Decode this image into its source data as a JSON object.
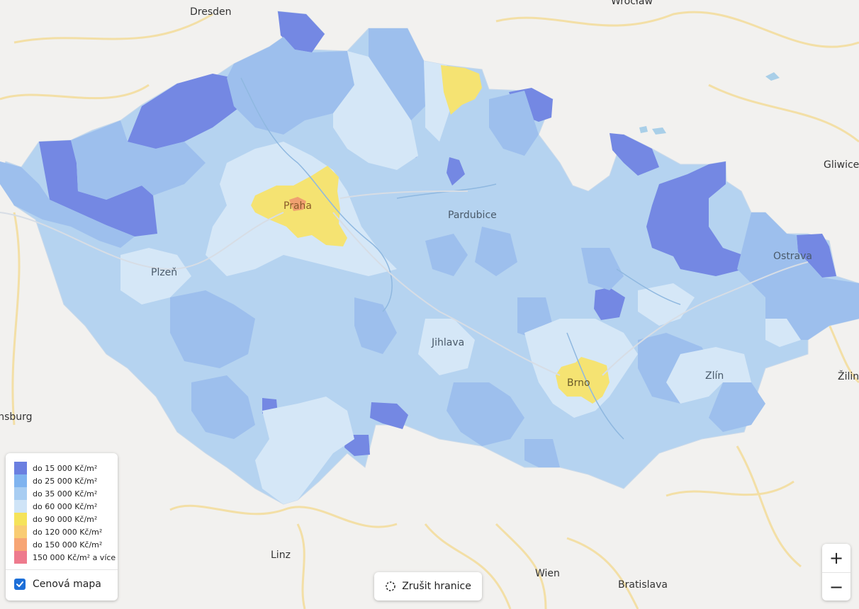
{
  "map": {
    "cities_outside": [
      {
        "name": "Dresden"
      },
      {
        "name": "Wrocław"
      },
      {
        "name": "Gliwice"
      },
      {
        "name": "Žilina"
      },
      {
        "name": "Regensburg"
      },
      {
        "name": "Linz"
      },
      {
        "name": "Wien"
      },
      {
        "name": "Bratislava"
      }
    ],
    "cities_inside": [
      {
        "name": "Praha"
      },
      {
        "name": "Pardubice"
      },
      {
        "name": "Plzeň"
      },
      {
        "name": "Ostrava"
      },
      {
        "name": "Jihlava"
      },
      {
        "name": "Brno"
      },
      {
        "name": "Zlín"
      }
    ],
    "fill_colors": {
      "base": "#b5d3f0",
      "c15": "#6b7fe0",
      "c25": "#9ec0ee",
      "c60": "#d3e6f7",
      "c90": "#f5e372",
      "c150": "#f0a070",
      "background": "#f2f1ef",
      "roads": "#f3dfa6"
    }
  },
  "legend": {
    "items": [
      {
        "label": "do 15 000 Kč/m²",
        "color": "#6b7fe0"
      },
      {
        "label": "do 25 000 Kč/m²",
        "color": "#7fb3ef"
      },
      {
        "label": "do 35 000 Kč/m²",
        "color": "#a8cdf2"
      },
      {
        "label": "do 60 000 Kč/m²",
        "color": "#cfe4f7"
      },
      {
        "label": "do 90 000 Kč/m²",
        "color": "#f5e35a"
      },
      {
        "label": "do 120 000 Kč/m²",
        "color": "#f9cc73"
      },
      {
        "label": "do 150 000 Kč/m²",
        "color": "#f7a574"
      },
      {
        "label": "150 000 Kč/m² a více",
        "color": "#ee7a8d"
      }
    ],
    "toggle_label": "Cenová mapa",
    "toggle_checked": true
  },
  "controls": {
    "clear_boundary_label": "Zrušit hranice",
    "zoom_in": "+",
    "zoom_out": "−"
  }
}
